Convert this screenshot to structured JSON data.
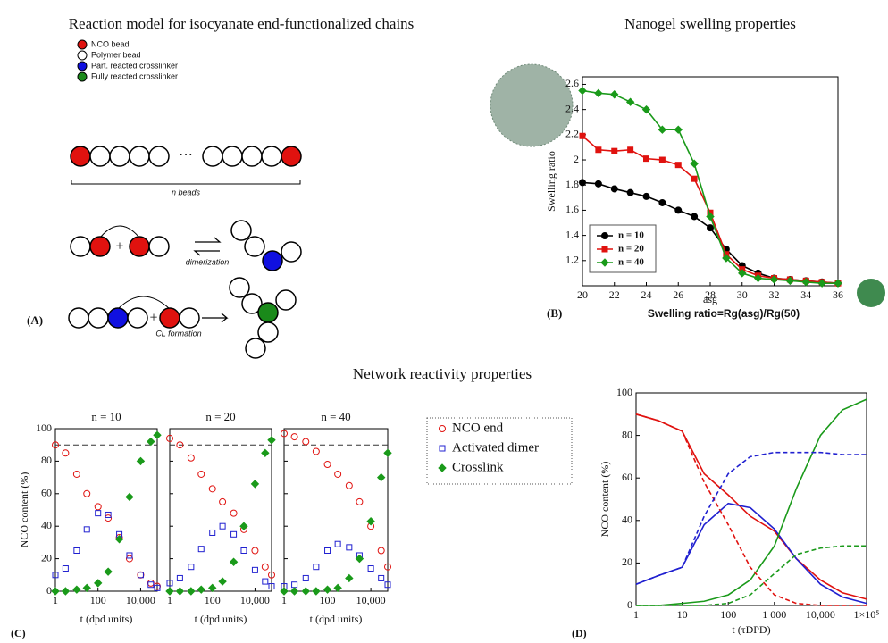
{
  "panels": {
    "a": "(A)",
    "b": "(B)",
    "c": "(C)",
    "d": "(D)"
  },
  "diagram": {
    "title": "Reaction model for isocyanate end-functionalized chains",
    "legend": [
      "NCO bead",
      "Polymer bead",
      "Part. reacted crosslinker",
      "Fully reacted crosslinker"
    ],
    "ellipsis": "···",
    "chain_caption": "n beads",
    "step1": "dimerization",
    "step2": "CL formation"
  },
  "section_c_title": "Network reactivity properties",
  "chart_data": [
    {
      "type": "line",
      "title": "Nanogel swelling properties",
      "x_label": "asg",
      "y_label": "Swelling ratio",
      "annotation": "Swelling ratio=Rg(asg)/Rg(50)",
      "x": [
        20,
        21,
        22,
        23,
        24,
        25,
        26,
        27,
        28,
        29,
        30,
        31,
        32,
        33,
        34,
        35,
        36
      ],
      "xlim": [
        20,
        36
      ],
      "xticks": [
        20,
        22,
        24,
        26,
        28,
        30,
        32,
        34,
        36
      ],
      "ylim": [
        1,
        2.66
      ],
      "yticks": [
        1.2,
        1.4,
        1.6,
        1.8,
        2,
        2.2,
        2.4,
        2.6
      ],
      "legend": "lower left",
      "series": [
        {
          "name": "n = 10",
          "color": "#000000",
          "marker": "circle",
          "values": [
            1.82,
            1.81,
            1.77,
            1.74,
            1.71,
            1.66,
            1.6,
            1.55,
            1.46,
            1.29,
            1.16,
            1.1,
            1.06,
            1.05,
            1.04,
            1.03,
            1.02
          ]
        },
        {
          "name": "n = 20",
          "color": "#e0120f",
          "marker": "square",
          "values": [
            2.19,
            2.08,
            2.07,
            2.08,
            2.01,
            2.0,
            1.96,
            1.85,
            1.58,
            1.25,
            1.13,
            1.08,
            1.06,
            1.05,
            1.04,
            1.03,
            1.02
          ]
        },
        {
          "name": "n = 40",
          "color": "#1a9a1a",
          "marker": "diamond",
          "values": [
            2.55,
            2.53,
            2.52,
            2.46,
            2.4,
            2.24,
            2.24,
            1.97,
            1.55,
            1.22,
            1.1,
            1.06,
            1.05,
            1.04,
            1.03,
            1.02,
            1.02
          ]
        }
      ]
    },
    {
      "type": "scatter",
      "title": "n = 10",
      "x_label": "t (dpd units)",
      "y_label": "NCO content (%)",
      "xscale": "log",
      "x": [
        1,
        3,
        10,
        30,
        100,
        300,
        1000,
        3000,
        10000,
        30000,
        60000
      ],
      "xlim": [
        1,
        60000
      ],
      "xticks": [
        1,
        100,
        {
          "value": 10000,
          "label": "10,000"
        }
      ],
      "ylim": [
        0,
        100
      ],
      "yticks": [
        0,
        20,
        40,
        60,
        80,
        100
      ],
      "ref_line": 90,
      "legend": "outside right",
      "series": [
        {
          "name": "NCO end",
          "color": "#e0120f",
          "marker": "circle",
          "values": [
            90,
            85,
            72,
            60,
            52,
            45,
            33,
            20,
            10,
            5,
            3
          ]
        },
        {
          "name": "Activated dimer",
          "color": "#2020d0",
          "marker": "square",
          "values": [
            10,
            14,
            25,
            38,
            48,
            47,
            35,
            22,
            10,
            4,
            2
          ]
        },
        {
          "name": "Crosslink",
          "color": "#1a9a1a",
          "marker": "diamond",
          "values": [
            0,
            0,
            1,
            2,
            5,
            12,
            32,
            58,
            80,
            92,
            96
          ]
        }
      ]
    },
    {
      "type": "scatter",
      "title": "n = 20",
      "x_label": "t (dpd units)",
      "xscale": "log",
      "x": [
        1,
        3,
        10,
        30,
        100,
        300,
        1000,
        3000,
        10000,
        30000,
        60000
      ],
      "xlim": [
        1,
        60000
      ],
      "xticks": [
        1,
        100,
        {
          "value": 10000,
          "label": "10,000"
        }
      ],
      "ylim": [
        0,
        100
      ],
      "yticks": [
        0,
        20,
        40,
        60,
        80,
        100
      ],
      "ref_line": 90,
      "series": [
        {
          "color": "#e0120f",
          "marker": "circle",
          "values": [
            94,
            90,
            82,
            72,
            63,
            55,
            48,
            38,
            25,
            15,
            10
          ]
        },
        {
          "color": "#2020d0",
          "marker": "square",
          "values": [
            5,
            8,
            15,
            26,
            36,
            40,
            35,
            25,
            13,
            6,
            3
          ]
        },
        {
          "color": "#1a9a1a",
          "marker": "diamond",
          "values": [
            0,
            0,
            0,
            1,
            2,
            6,
            18,
            40,
            66,
            85,
            93
          ]
        }
      ]
    },
    {
      "type": "scatter",
      "title": "n = 40",
      "x_label": "t (dpd units)",
      "xscale": "log",
      "x": [
        1,
        3,
        10,
        30,
        100,
        300,
        1000,
        3000,
        10000,
        30000,
        60000
      ],
      "xlim": [
        1,
        60000
      ],
      "xticks": [
        1,
        100,
        {
          "value": 10000,
          "label": "10,000"
        }
      ],
      "ylim": [
        0,
        100
      ],
      "yticks": [
        0,
        20,
        40,
        60,
        80,
        100
      ],
      "ref_line": 90,
      "series": [
        {
          "color": "#e0120f",
          "marker": "circle",
          "values": [
            97,
            95,
            92,
            86,
            78,
            72,
            65,
            55,
            40,
            25,
            15
          ]
        },
        {
          "color": "#2020d0",
          "marker": "square",
          "values": [
            3,
            4,
            8,
            15,
            25,
            29,
            27,
            22,
            14,
            8,
            4
          ]
        },
        {
          "color": "#1a9a1a",
          "marker": "diamond",
          "values": [
            0,
            0,
            0,
            0,
            1,
            2,
            8,
            20,
            43,
            70,
            85
          ]
        }
      ]
    },
    {
      "type": "line",
      "x_label": "t (τDPD)",
      "y_label": "NCO content (%)",
      "xscale": "log",
      "x": [
        1,
        3,
        10,
        30,
        100,
        300,
        1000,
        3000,
        10000,
        30000,
        100000
      ],
      "xlim": [
        1,
        100000
      ],
      "xticks": [
        1,
        10,
        100,
        {
          "value": 1000,
          "label": "1 000"
        },
        {
          "value": 10000,
          "label": "10,000"
        },
        {
          "value": 100000,
          "label": "1×10⁵"
        }
      ],
      "ylim": [
        0,
        100
      ],
      "yticks": [
        0,
        20,
        40,
        60,
        80,
        100
      ],
      "series": [
        {
          "color": "#e0120f",
          "values": [
            90,
            87,
            82,
            62,
            52,
            42,
            35,
            22,
            12,
            6,
            3
          ]
        },
        {
          "color": "#2020d0",
          "values": [
            10,
            14,
            18,
            38,
            48,
            46,
            36,
            22,
            10,
            4,
            1
          ]
        },
        {
          "color": "#1a9a1a",
          "values": [
            0,
            0,
            1,
            2,
            5,
            12,
            28,
            55,
            80,
            92,
            97
          ]
        },
        {
          "color": "#e0120f",
          "dash": true,
          "values": [
            90,
            87,
            82,
            58,
            38,
            18,
            5,
            1,
            0,
            0,
            0
          ]
        },
        {
          "color": "#2020d0",
          "dash": true,
          "values": [
            10,
            14,
            18,
            42,
            62,
            70,
            72,
            72,
            72,
            71,
            71
          ]
        },
        {
          "color": "#1a9a1a",
          "dash": true,
          "values": [
            0,
            0,
            0,
            0,
            1,
            5,
            15,
            24,
            27,
            28,
            28
          ]
        }
      ]
    }
  ]
}
